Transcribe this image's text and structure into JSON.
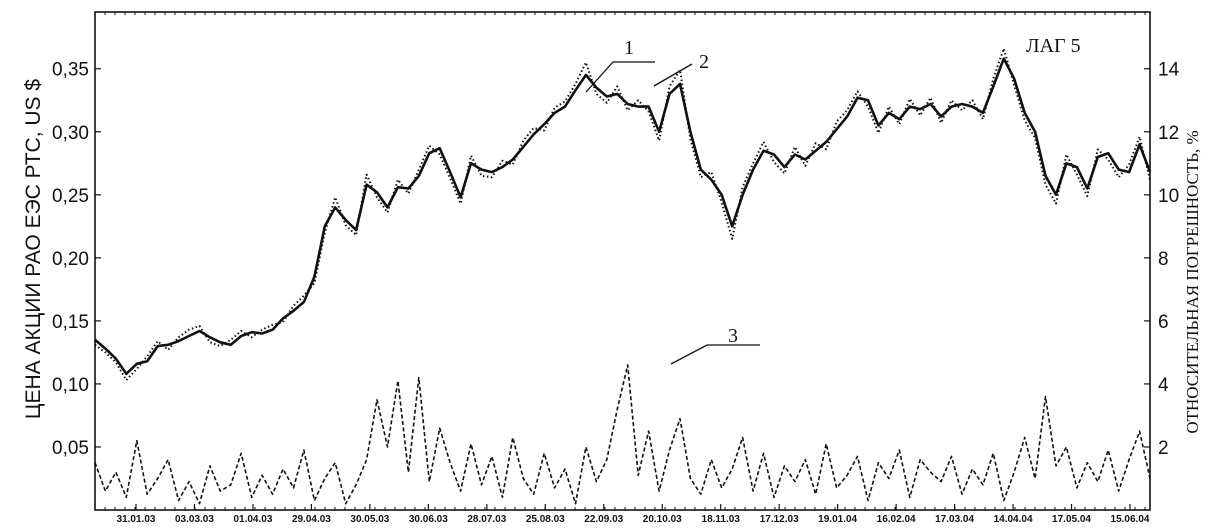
{
  "chart_data": {
    "type": "line",
    "title": "ЛАГ 5",
    "ylabel_left": "ЦЕНА АКЦИИ РАО ЕЭС РТС, US $",
    "ylabel_right": "ОТНОСИТЕЛЬНАЯ ПОГРЕШНОСТЬ, %",
    "x_tick_labels": [
      "31.01.03",
      "03.03.03",
      "01.04.03",
      "29.04.03",
      "30.05.03",
      "30.06.03",
      "28.07.03",
      "25.08.03",
      "22.09.03",
      "20.10.03",
      "18.11.03",
      "17.12.03",
      "19.01.04",
      "16.02.04",
      "17.03.04",
      "14.04.04",
      "17.05.04",
      "15.06.04"
    ],
    "y_left_ticks": [
      "0,05",
      "0,10",
      "0,15",
      "0,20",
      "0,25",
      "0,30",
      "0,35"
    ],
    "y_left_values": [
      0.05,
      0.1,
      0.15,
      0.2,
      0.25,
      0.3,
      0.35
    ],
    "y_right_ticks": [
      "2",
      "4",
      "6",
      "8",
      "10",
      "12",
      "14"
    ],
    "y_right_values": [
      2,
      4,
      6,
      8,
      10,
      12,
      14
    ],
    "ylim_left": [
      0.0,
      0.395
    ],
    "ylim_right": [
      0.0,
      15.8
    ],
    "grid": false,
    "series": [
      {
        "axis": "left",
        "style": "solid",
        "values": [
          0.135,
          0.128,
          0.12,
          0.108,
          0.116,
          0.118,
          0.13,
          0.131,
          0.134,
          0.138,
          0.142,
          0.137,
          0.133,
          0.131,
          0.138,
          0.141,
          0.14,
          0.143,
          0.152,
          0.158,
          0.165,
          0.185,
          0.225,
          0.24,
          0.23,
          0.222,
          0.258,
          0.252,
          0.24,
          0.256,
          0.255,
          0.265,
          0.283,
          0.287,
          0.268,
          0.248,
          0.275,
          0.27,
          0.268,
          0.272,
          0.278,
          0.288,
          0.298,
          0.306,
          0.315,
          0.32,
          0.333,
          0.345,
          0.335,
          0.328,
          0.33,
          0.322,
          0.32,
          0.32,
          0.3,
          0.33,
          0.338,
          0.3,
          0.27,
          0.262,
          0.25,
          0.225,
          0.25,
          0.27,
          0.285,
          0.282,
          0.272,
          0.282,
          0.278,
          0.285,
          0.292,
          0.302,
          0.312,
          0.327,
          0.325,
          0.305,
          0.315,
          0.31,
          0.32,
          0.318,
          0.322,
          0.312,
          0.32,
          0.322,
          0.32,
          0.315,
          0.336,
          0.358,
          0.342,
          0.315,
          0.3,
          0.265,
          0.25,
          0.275,
          0.272,
          0.255,
          0.28,
          0.283,
          0.27,
          0.268,
          0.29,
          0.268
        ]
      },
      {
        "axis": "left",
        "style": "dotted",
        "values": [
          0.131,
          0.125,
          0.117,
          0.103,
          0.112,
          0.122,
          0.134,
          0.127,
          0.137,
          0.143,
          0.146,
          0.133,
          0.13,
          0.135,
          0.142,
          0.137,
          0.143,
          0.147,
          0.149,
          0.162,
          0.17,
          0.18,
          0.22,
          0.248,
          0.226,
          0.218,
          0.266,
          0.248,
          0.236,
          0.262,
          0.251,
          0.27,
          0.289,
          0.282,
          0.263,
          0.243,
          0.281,
          0.265,
          0.264,
          0.277,
          0.274,
          0.293,
          0.303,
          0.301,
          0.319,
          0.324,
          0.338,
          0.355,
          0.33,
          0.323,
          0.336,
          0.317,
          0.325,
          0.316,
          0.293,
          0.336,
          0.349,
          0.294,
          0.264,
          0.268,
          0.244,
          0.215,
          0.256,
          0.275,
          0.292,
          0.276,
          0.267,
          0.288,
          0.273,
          0.291,
          0.286,
          0.308,
          0.317,
          0.332,
          0.32,
          0.299,
          0.32,
          0.306,
          0.326,
          0.313,
          0.327,
          0.307,
          0.325,
          0.317,
          0.325,
          0.31,
          0.342,
          0.366,
          0.337,
          0.309,
          0.295,
          0.258,
          0.243,
          0.282,
          0.266,
          0.249,
          0.286,
          0.278,
          0.264,
          0.274,
          0.296,
          0.262
        ]
      },
      {
        "axis": "right",
        "style": "dashed",
        "values": [
          1.5,
          0.6,
          1.2,
          0.4,
          2.2,
          0.5,
          1.0,
          1.6,
          0.3,
          0.9,
          0.2,
          1.4,
          0.6,
          0.8,
          1.8,
          0.4,
          1.1,
          0.5,
          1.3,
          0.7,
          1.9,
          0.3,
          1.0,
          1.5,
          0.2,
          0.8,
          1.6,
          3.5,
          2.0,
          4.1,
          1.2,
          4.2,
          0.9,
          2.6,
          1.5,
          0.6,
          2.1,
          0.8,
          1.7,
          0.4,
          2.3,
          1.0,
          0.5,
          1.8,
          0.7,
          1.3,
          0.2,
          2.0,
          0.9,
          1.6,
          3.2,
          4.6,
          1.1,
          2.5,
          0.6,
          1.9,
          2.9,
          1.0,
          0.5,
          1.6,
          0.7,
          1.3,
          2.3,
          0.6,
          1.8,
          0.4,
          1.4,
          0.9,
          1.6,
          0.5,
          2.1,
          0.7,
          1.1,
          1.7,
          0.3,
          1.5,
          1.0,
          1.9,
          0.4,
          1.6,
          1.2,
          0.9,
          1.7,
          0.5,
          1.3,
          0.8,
          1.8,
          0.3,
          1.2,
          2.3,
          1.0,
          3.6,
          1.4,
          2.0,
          0.7,
          1.5,
          0.9,
          1.9,
          0.6,
          1.6,
          2.5,
          1.0
        ]
      }
    ],
    "annotations": [
      "1",
      "2",
      "3"
    ]
  }
}
